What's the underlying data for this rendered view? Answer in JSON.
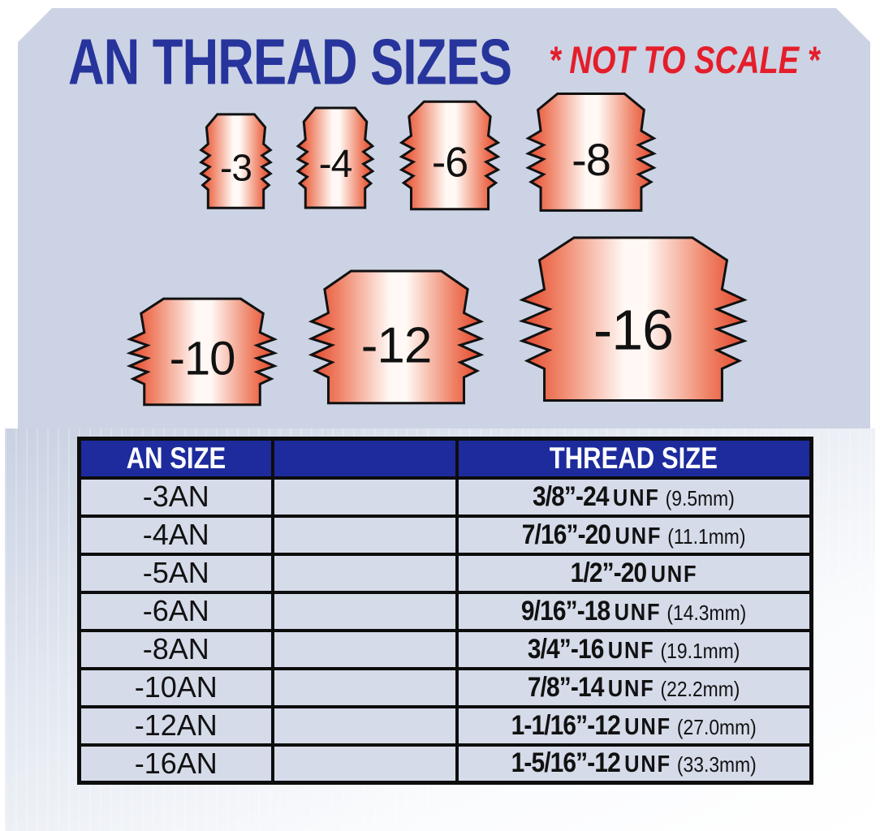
{
  "title": "AN THREAD SIZES",
  "subtitle": "* NOT TO SCALE *",
  "fittings": [
    {
      "label": "-3"
    },
    {
      "label": "-4"
    },
    {
      "label": "-6"
    },
    {
      "label": "-8"
    },
    {
      "label": "-10"
    },
    {
      "label": "-12"
    },
    {
      "label": "-16"
    }
  ],
  "table": {
    "headers": {
      "an": "AN SIZE",
      "middle": "",
      "thread": "THREAD SIZE"
    },
    "rows": [
      {
        "an": "-3AN",
        "size": "3/8”-24",
        "unf": "UNF",
        "mm": "(9.5mm)"
      },
      {
        "an": "-4AN",
        "size": "7/16”-20",
        "unf": "UNF",
        "mm": "(11.1mm)"
      },
      {
        "an": "-5AN",
        "size": "1/2”-20",
        "unf": "UNF",
        "mm": ""
      },
      {
        "an": "-6AN",
        "size": "9/16”-18",
        "unf": "UNF",
        "mm": "(14.3mm)"
      },
      {
        "an": "-8AN",
        "size": "3/4”-16",
        "unf": "UNF",
        "mm": "(19.1mm)"
      },
      {
        "an": "-10AN",
        "size": "7/8”-14",
        "unf": "UNF",
        "mm": "(22.2mm)"
      },
      {
        "an": "-12AN",
        "size": "1-1/16”-12",
        "unf": "UNF",
        "mm": "(27.0mm)"
      },
      {
        "an": "-16AN",
        "size": "1-5/16”-12",
        "unf": "UNF",
        "mm": "(33.3mm)"
      }
    ]
  },
  "colors": {
    "title_blue": "#27349c",
    "accent_red": "#e41e2a",
    "header_blue": "#1d2b9d",
    "panel_blue": "#ccd3e4",
    "row_bg": "#d5dbe9",
    "fitting_edge_red": "#e2462c",
    "fitting_center": "#fff8f4",
    "line_black": "#0d0d0d"
  }
}
